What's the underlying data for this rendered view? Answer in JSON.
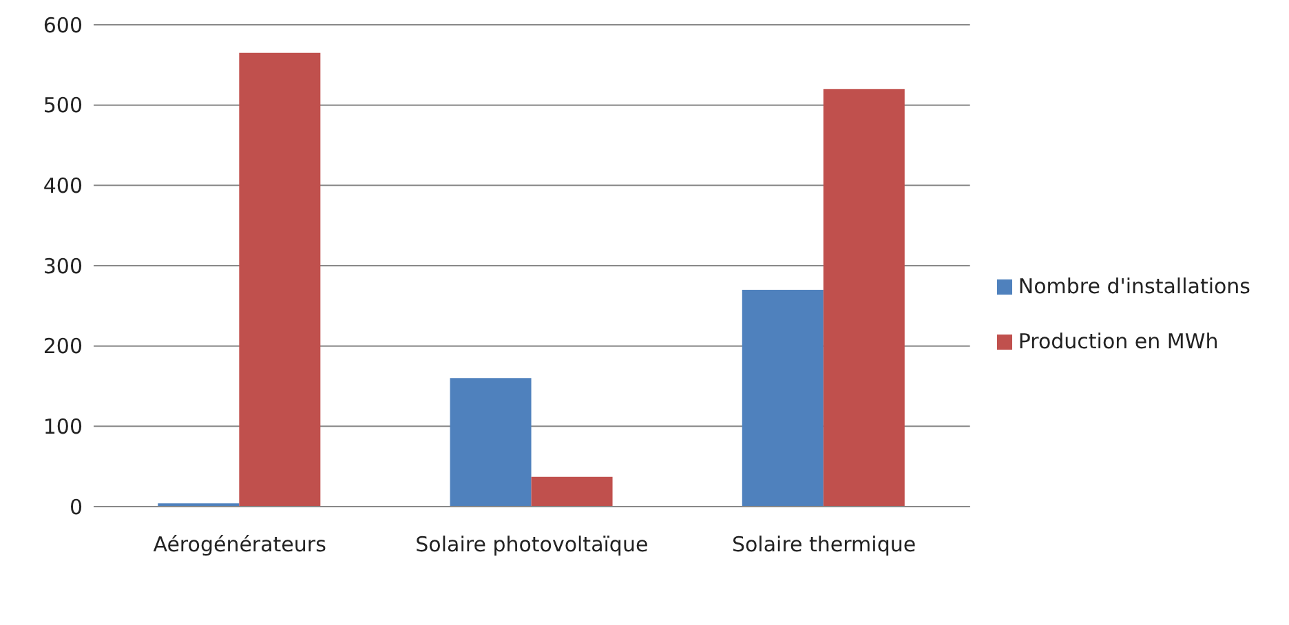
{
  "chart_data": {
    "type": "bar",
    "categories": [
      "Aérogénérateurs",
      "Solaire photovoltaïque",
      "Solaire thermique"
    ],
    "series": [
      {
        "name": "Nombre d'installations",
        "color": "#4f81bd",
        "values": [
          4,
          160,
          270
        ]
      },
      {
        "name": "Production en MWh",
        "color": "#c0504d",
        "values": [
          565,
          37,
          520
        ]
      }
    ],
    "ylim": [
      0,
      600
    ],
    "yticks": [
      0,
      100,
      200,
      300,
      400,
      500,
      600
    ],
    "grid": "y",
    "legend": "right"
  }
}
